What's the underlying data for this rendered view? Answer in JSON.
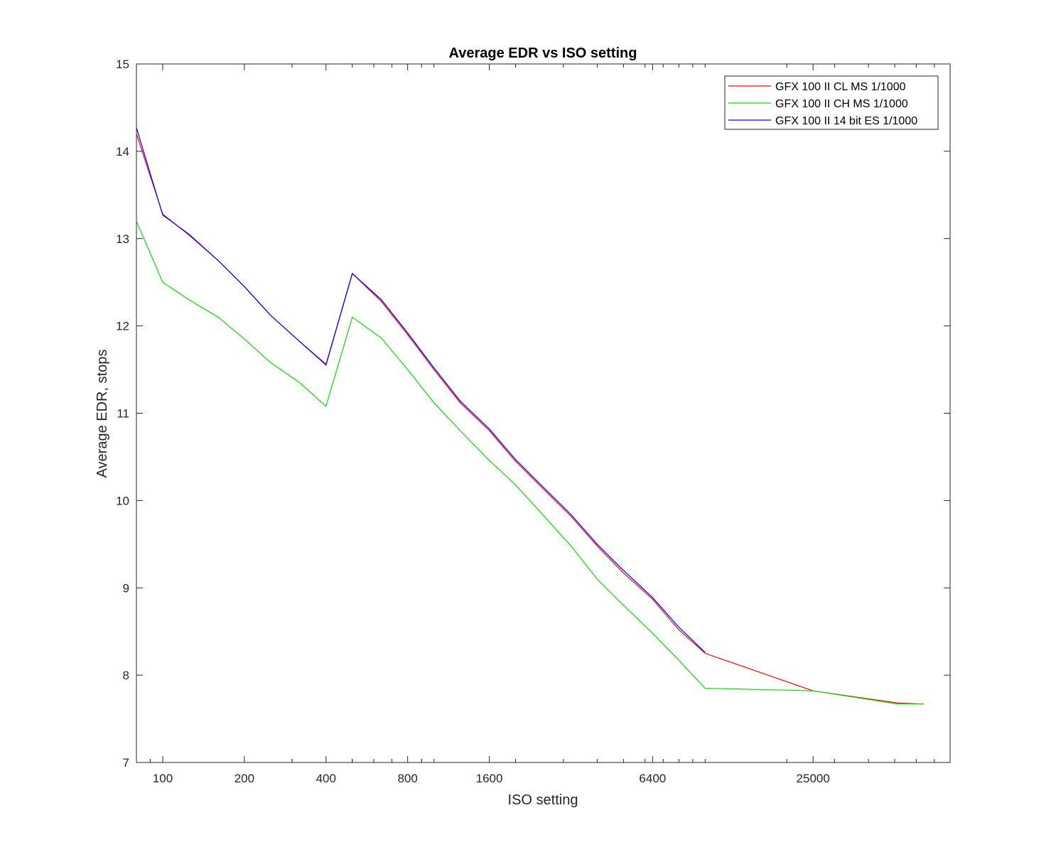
{
  "chart_data": {
    "type": "line",
    "title": "Average EDR vs ISO setting",
    "xlabel": "ISO setting",
    "ylabel": "Average EDR, stops",
    "xscale": "log2",
    "xlim": [
      80,
      80000
    ],
    "ylim": [
      7,
      15
    ],
    "x_ticks": [
      100,
      200,
      400,
      800,
      1600,
      6400,
      25000
    ],
    "x_tick_labels": [
      "100",
      "200",
      "400",
      "800",
      "1600",
      "6400",
      "25000"
    ],
    "y_ticks": [
      7,
      8,
      9,
      10,
      11,
      12,
      13,
      14,
      15
    ],
    "y_tick_labels": [
      "7",
      "8",
      "9",
      "10",
      "11",
      "12",
      "13",
      "14",
      "15"
    ],
    "grid": false,
    "legend_position": "top-right",
    "series": [
      {
        "name": "GFX 100 II CL MS 1/1000",
        "color": "#ff0000",
        "points": [
          [
            80,
            14.2
          ],
          [
            100,
            13.28
          ],
          [
            125,
            13.04
          ],
          [
            160,
            12.75
          ],
          [
            200,
            12.45
          ],
          [
            250,
            12.12
          ],
          [
            320,
            11.82
          ],
          [
            400,
            11.55
          ],
          [
            500,
            12.6
          ],
          [
            640,
            12.28
          ],
          [
            800,
            11.9
          ],
          [
            1000,
            11.5
          ],
          [
            1250,
            11.12
          ],
          [
            1600,
            10.8
          ],
          [
            2000,
            10.45
          ],
          [
            2500,
            10.15
          ],
          [
            3200,
            9.82
          ],
          [
            4000,
            9.48
          ],
          [
            5000,
            9.17
          ],
          [
            6400,
            8.87
          ],
          [
            8000,
            8.52
          ],
          [
            10000,
            8.25
          ],
          [
            25000,
            7.82
          ],
          [
            51200,
            7.68
          ],
          [
            64000,
            7.67
          ]
        ]
      },
      {
        "name": "GFX 100 II CH MS 1/1000",
        "color": "#00e000",
        "points": [
          [
            80,
            13.2
          ],
          [
            100,
            12.5
          ],
          [
            125,
            12.3
          ],
          [
            160,
            12.1
          ],
          [
            200,
            11.85
          ],
          [
            250,
            11.58
          ],
          [
            320,
            11.35
          ],
          [
            400,
            11.08
          ],
          [
            500,
            12.1
          ],
          [
            640,
            11.86
          ],
          [
            800,
            11.5
          ],
          [
            1000,
            11.12
          ],
          [
            1250,
            10.8
          ],
          [
            1600,
            10.46
          ],
          [
            2000,
            10.18
          ],
          [
            2500,
            9.85
          ],
          [
            3200,
            9.48
          ],
          [
            4000,
            9.1
          ],
          [
            5000,
            8.8
          ],
          [
            6400,
            8.48
          ],
          [
            8000,
            8.17
          ],
          [
            10000,
            7.85
          ],
          [
            25000,
            7.82
          ],
          [
            51200,
            7.67
          ],
          [
            64000,
            7.67
          ]
        ]
      },
      {
        "name": "GFX 100 II 14 bit ES 1/1000",
        "color": "#0000ff",
        "points": [
          [
            80,
            14.27
          ],
          [
            100,
            13.27
          ],
          [
            125,
            13.05
          ],
          [
            160,
            12.75
          ],
          [
            200,
            12.45
          ],
          [
            250,
            12.12
          ],
          [
            320,
            11.82
          ],
          [
            400,
            11.56
          ],
          [
            500,
            12.6
          ],
          [
            640,
            12.3
          ],
          [
            800,
            11.92
          ],
          [
            1000,
            11.52
          ],
          [
            1250,
            11.14
          ],
          [
            1600,
            10.82
          ],
          [
            2000,
            10.47
          ],
          [
            2500,
            10.17
          ],
          [
            3200,
            9.84
          ],
          [
            4000,
            9.5
          ],
          [
            5000,
            9.2
          ],
          [
            6400,
            8.89
          ],
          [
            8000,
            8.55
          ],
          [
            10000,
            8.26
          ]
        ]
      }
    ]
  }
}
